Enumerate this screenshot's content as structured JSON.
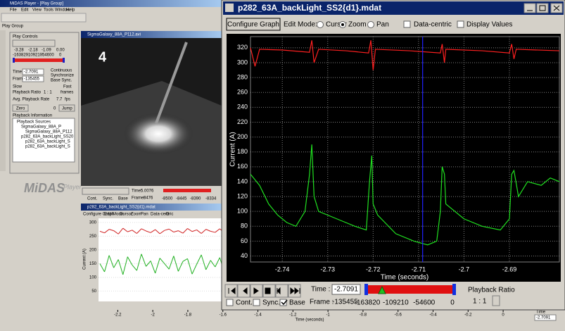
{
  "left_app": {
    "title": "MiDAS Player - [Play Group]",
    "menu": [
      "File",
      "Edit",
      "View",
      "Tools",
      "Window",
      "Help"
    ],
    "tab": "Play Group",
    "play_controls": {
      "title": "Play Controls",
      "time_ticks": [
        "-3.28",
        "-2.18",
        "-1.09",
        "0.00"
      ],
      "frame_ticks": [
        "-163820",
        "-109210",
        "-54600",
        "0"
      ],
      "time_label": "Time:",
      "time_value": "-2.7091",
      "frame_label": "Frame:",
      "frame_value": "-135455",
      "options": [
        "Continuous",
        "Synchronize",
        "Base Sync."
      ],
      "slow": "Slow",
      "fast": "Fast",
      "ratio_label": "Playback Ratio",
      "ratio_value": "1 : 1",
      "ratio_unit": "frames",
      "rate_label": "Avg. Playback Rate",
      "rate_value": "7.7",
      "rate_unit": "fps",
      "zero": "Zero",
      "jump_value": "0",
      "jump": "Jump"
    },
    "playback_info": {
      "title": "Playback Information",
      "tree": [
        "Playback Sources",
        "SigmaGalaxy_88A_P",
        "SigmaGalaxy_88A_P112",
        "p282_63A_backLight_SS20",
        "p282_63A_backLight_S",
        "p282_63A_backLight_S"
      ]
    },
    "logo": "MiDAS",
    "logo_sub": "Player",
    "video": {
      "title": "SigmaGalaxy_88A_P112.avi",
      "overlay": "4",
      "time_label": "Time:",
      "time_value": "5.0076",
      "frame_label": "Frame:",
      "frame_value": "8476",
      "options": [
        "Cont.",
        "Sync.",
        "Base"
      ],
      "slider_ticks": [
        "-8500",
        "-8445",
        "-8390",
        "-8334"
      ]
    },
    "small_chart": {
      "title": "p282_63A_backLight_SS2{d1}.mdat",
      "toolbar": [
        "Configure Graph",
        "Edit Mode:",
        "Cursor",
        "Zoom",
        "Pan",
        "Data-centric",
        "D"
      ],
      "y_label": "Current (A)",
      "ylim": [
        20,
        310
      ],
      "yticks": [
        300,
        250,
        200,
        150,
        100,
        50
      ],
      "red": [
        268,
        262,
        275,
        270,
        258,
        279,
        266,
        272,
        260,
        277,
        269,
        263,
        274,
        259,
        271,
        276,
        265,
        270,
        261,
        278,
        267,
        273,
        260,
        275,
        268,
        264,
        277,
        262,
        271,
        269
      ],
      "green": [
        150,
        120,
        180,
        135,
        165,
        110,
        175,
        145,
        125,
        185,
        140,
        160,
        115,
        170,
        150,
        130,
        178,
        122,
        158,
        168,
        112,
        148,
        182,
        128,
        162,
        138,
        172,
        118,
        155,
        145
      ],
      "red_color": "#d02020",
      "green_color": "#20b020"
    },
    "bottom_axis": {
      "xlim": [
        -2.35,
        0.1
      ],
      "xticks": [
        -2.2,
        -2,
        -1.8,
        -1.6,
        -1.4,
        -1.2,
        -1,
        -0.8,
        -0.6,
        -0.4,
        -0.2,
        0
      ],
      "x_label": "Time (seconds)",
      "time_label": "Time",
      "time_value": "-2.7091"
    }
  },
  "main_window": {
    "title": "p282_63A_backLight_SS2{d1}.mdat",
    "toolbar": {
      "configure": "Configure Graph",
      "edit_mode": "Edit Mode:",
      "modes": [
        "Cursor",
        "Zoom",
        "Pan"
      ],
      "selected_mode": 1,
      "data_centric": "Data-centric",
      "display_values": "Display Values"
    },
    "chart": {
      "type": "line",
      "x_label": "Time (seconds)",
      "y_label": "Current (A)",
      "xlim": [
        -2.747,
        -2.679
      ],
      "ylim": [
        32,
        335
      ],
      "xticks": [
        -2.74,
        -2.73,
        -2.72,
        -2.71,
        -2.7,
        -2.69
      ],
      "yticks": [
        40,
        60,
        80,
        100,
        120,
        140,
        160,
        180,
        200,
        220,
        240,
        260,
        280,
        300,
        320
      ],
      "grid": true,
      "cursor_color": "#2020ff",
      "series": [
        {
          "color": "#ff2020",
          "x": [
            -2.747,
            -2.746,
            -2.745,
            -2.74,
            -2.734,
            -2.7335,
            -2.733,
            -2.732,
            -2.726,
            -2.721,
            -2.7205,
            -2.72,
            -2.7195,
            -2.712,
            -2.7052,
            -2.7048,
            -2.7043,
            -2.704,
            -2.696,
            -2.69,
            -2.6895,
            -2.689,
            -2.6885,
            -2.679
          ],
          "values": [
            320,
            295,
            318,
            317,
            314,
            330,
            300,
            318,
            316,
            313,
            330,
            290,
            318,
            316,
            313,
            325,
            300,
            318,
            316,
            313,
            325,
            305,
            318,
            316
          ]
        },
        {
          "color": "#20e020",
          "x": [
            -2.747,
            -2.745,
            -2.743,
            -2.741,
            -2.739,
            -2.737,
            -2.735,
            -2.734,
            -2.7335,
            -2.733,
            -2.732,
            -2.728,
            -2.724,
            -2.7215,
            -2.7208,
            -2.7203,
            -2.72,
            -2.719,
            -2.715,
            -2.711,
            -2.708,
            -2.706,
            -2.7052,
            -2.7048,
            -2.7043,
            -2.704,
            -2.7,
            -2.696,
            -2.692,
            -2.69,
            -2.6895,
            -2.689,
            -2.688,
            -2.686,
            -2.683,
            -2.681,
            -2.679
          ],
          "values": [
            150,
            135,
            110,
            95,
            85,
            80,
            100,
            150,
            190,
            120,
            100,
            90,
            80,
            75,
            140,
            175,
            110,
            95,
            70,
            60,
            55,
            60,
            100,
            160,
            150,
            110,
            90,
            80,
            75,
            90,
            150,
            155,
            120,
            140,
            135,
            145,
            140
          ]
        }
      ]
    },
    "controls": {
      "time_label": "Time :",
      "time": -2.7091,
      "frame_label": "Frame :",
      "frame": -135455,
      "options": [
        "Cont.",
        "Sync.",
        "Base"
      ],
      "slider_ticks": [
        -163820,
        -109210,
        -54600,
        0
      ],
      "ratio_label": "Playback Ratio",
      "ratio_value": "1 : 1"
    }
  }
}
